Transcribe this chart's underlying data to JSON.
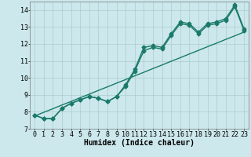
{
  "title": "",
  "xlabel": "Humidex (Indice chaleur)",
  "ylabel": "",
  "x": [
    0,
    1,
    2,
    3,
    4,
    5,
    6,
    7,
    8,
    9,
    10,
    11,
    12,
    13,
    14,
    15,
    16,
    17,
    18,
    19,
    20,
    21,
    22,
    23
  ],
  "line1": [
    7.8,
    7.6,
    7.6,
    8.2,
    8.5,
    8.7,
    8.9,
    8.8,
    8.6,
    8.9,
    9.6,
    10.5,
    11.8,
    11.9,
    11.8,
    12.6,
    13.3,
    13.2,
    12.7,
    13.2,
    13.3,
    13.5,
    14.3,
    12.9
  ],
  "line2": [
    7.8,
    7.6,
    7.6,
    8.2,
    8.5,
    8.7,
    8.9,
    8.8,
    8.6,
    8.9,
    9.5,
    10.4,
    11.6,
    11.8,
    11.7,
    12.5,
    13.2,
    13.1,
    12.6,
    13.1,
    13.2,
    13.4,
    14.2,
    12.8
  ],
  "line_reg": [
    7.75,
    7.97,
    8.18,
    8.4,
    8.61,
    8.83,
    9.04,
    9.26,
    9.47,
    9.69,
    9.9,
    10.12,
    10.33,
    10.55,
    10.76,
    10.98,
    11.19,
    11.41,
    11.62,
    11.84,
    12.05,
    12.27,
    12.48,
    12.7
  ],
  "ylim": [
    7.0,
    14.5
  ],
  "xlim": [
    -0.5,
    23.5
  ],
  "yticks": [
    7,
    8,
    9,
    10,
    11,
    12,
    13,
    14
  ],
  "xticks": [
    0,
    1,
    2,
    3,
    4,
    5,
    6,
    7,
    8,
    9,
    10,
    11,
    12,
    13,
    14,
    15,
    16,
    17,
    18,
    19,
    20,
    21,
    22,
    23
  ],
  "line_color": "#1a7a6a",
  "bg_color": "#cce8ec",
  "grid_color": "#aacccc",
  "marker": "D",
  "marker_size": 2.5,
  "line_width": 1.0,
  "xlabel_fontsize": 7,
  "tick_fontsize": 6
}
